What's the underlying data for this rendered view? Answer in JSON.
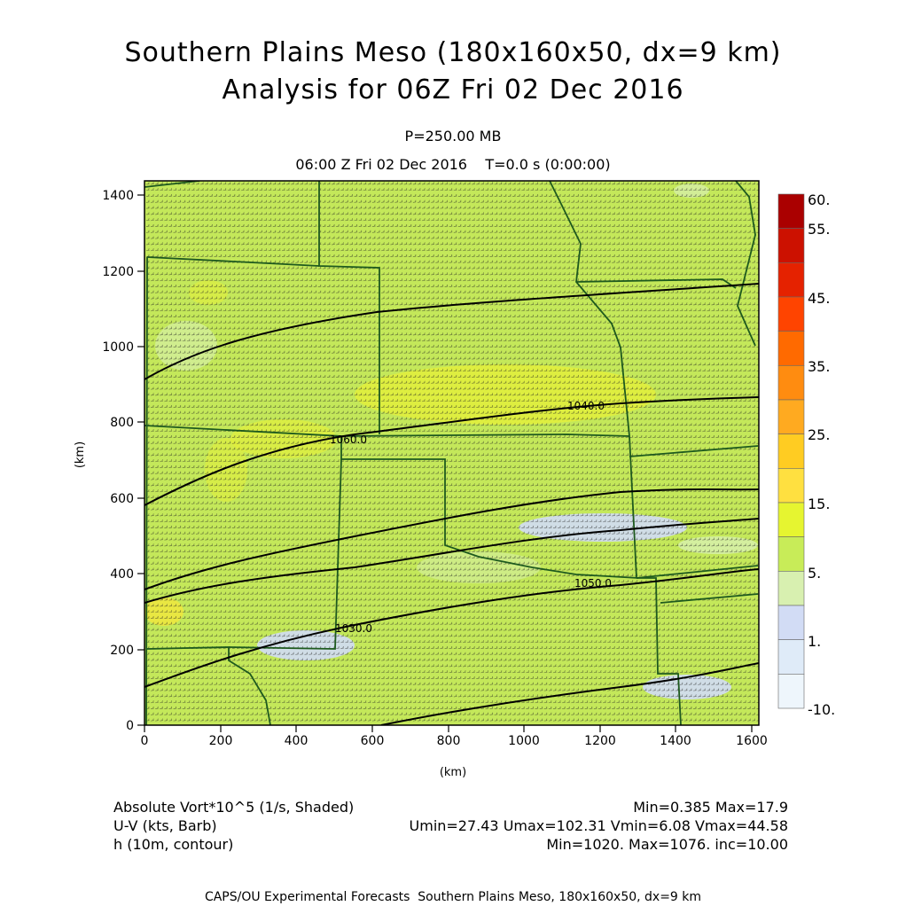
{
  "title": {
    "line1": "Southern Plains Meso (180x160x50, dx=9 km)",
    "line2": "Analysis for 06Z Fri 02 Dec 2016"
  },
  "subtitle": {
    "level": "P=250.00 MB",
    "time": "06:00 Z Fri 02 Dec 2016    T=0.0 s (0:00:00)"
  },
  "axes": {
    "x_label": "(km)",
    "y_label": "(km)",
    "x_ticks": [
      "0",
      "200",
      "400",
      "600",
      "800",
      "1000",
      "1200",
      "1400",
      "1600"
    ],
    "y_ticks": [
      "0",
      "200",
      "400",
      "600",
      "800",
      "1000",
      "1200",
      "1400"
    ],
    "xlim": [
      0,
      1620
    ],
    "ylim": [
      0,
      1440
    ]
  },
  "colorbar": {
    "labels": [
      "60.",
      "55.",
      "45.",
      "35.",
      "25.",
      "15.",
      "5.",
      "1.",
      "-10."
    ],
    "colors": [
      "#aa0000",
      "#cc1100",
      "#e52200",
      "#ff4400",
      "#ff6a00",
      "#ff8c10",
      "#ffaa20",
      "#ffcc22",
      "#ffe040",
      "#e6f530",
      "#c8ec58",
      "#d8f0b0",
      "#d2dcf5",
      "#dfebf8",
      "#eef6fc"
    ]
  },
  "legend": {
    "row1_left": "Absolute Vort*10^5 (1/s, Shaded)",
    "row1_right": "Min=0.385 Max=17.9",
    "row2_left": "U-V (kts, Barb)",
    "row2_right": "Umin=27.43 Umax=102.31 Vmin=6.08 Vmax=44.58",
    "row3_left": "h (10m, contour)",
    "row3_right": "Min=1020. Max=1076. inc=10.00"
  },
  "contour_labels": [
    "1060.0",
    "1040.0",
    "1050.0",
    "1030.0"
  ],
  "footer": "CAPS/OU Experimental Forecasts  Southern Plains Meso, 180x160x50, dx=9 km",
  "colors": {
    "background_field": "#c4e85a",
    "contour": "#000000",
    "state_boundary": "#1e5a1e",
    "barb": "#222222"
  }
}
